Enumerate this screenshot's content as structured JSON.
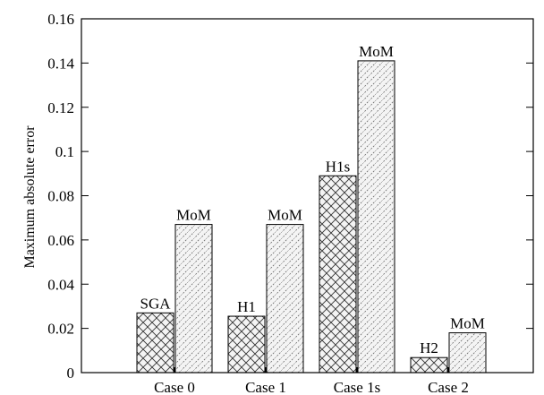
{
  "chart_data": {
    "type": "bar",
    "title": "",
    "xlabel": "",
    "ylabel": "Maximum absolute error",
    "ylim": [
      0,
      0.16
    ],
    "yticks": [
      "0",
      "0.02",
      "0.04",
      "0.06",
      "0.08",
      "0.1",
      "0.12",
      "0.14",
      "0.16"
    ],
    "grid": false,
    "categories": [
      "Case 0",
      "Case 1",
      "Case 1s",
      "Case 2"
    ],
    "bars": [
      [
        {
          "label": "SGA",
          "value": 0.027,
          "pattern": "crosshatch"
        },
        {
          "label": "MoM",
          "value": 0.067,
          "pattern": "diagonal"
        }
      ],
      [
        {
          "label": "H1",
          "value": 0.0255,
          "pattern": "crosshatch"
        },
        {
          "label": "MoM",
          "value": 0.067,
          "pattern": "diagonal"
        }
      ],
      [
        {
          "label": "H1s",
          "value": 0.089,
          "pattern": "crosshatch"
        },
        {
          "label": "MoM",
          "value": 0.141,
          "pattern": "diagonal"
        }
      ],
      [
        {
          "label": "H2",
          "value": 0.0068,
          "pattern": "crosshatch"
        },
        {
          "label": "MoM",
          "value": 0.018,
          "pattern": "diagonal"
        }
      ]
    ]
  }
}
